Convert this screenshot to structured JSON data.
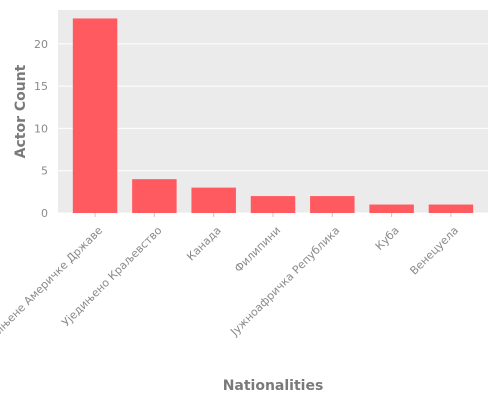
{
  "chart_data": {
    "type": "bar",
    "categories": [
      "Сједињене Америчке Државе",
      "Уједињено Краљевство",
      "Канада",
      "Филипини",
      "Јужноафричка Република",
      "Куба",
      "Венецуела"
    ],
    "values": [
      23,
      4,
      3,
      2,
      2,
      1,
      1
    ],
    "xlabel": "Nationalities",
    "ylabel": "Actor Count",
    "ylim": [
      0,
      24
    ],
    "yticks": [
      0,
      5,
      10,
      15,
      20
    ],
    "grid": true,
    "colors": {
      "bar": "#ff5a5f",
      "panel": "#ebebeb",
      "gridline": "#ffffff"
    }
  }
}
